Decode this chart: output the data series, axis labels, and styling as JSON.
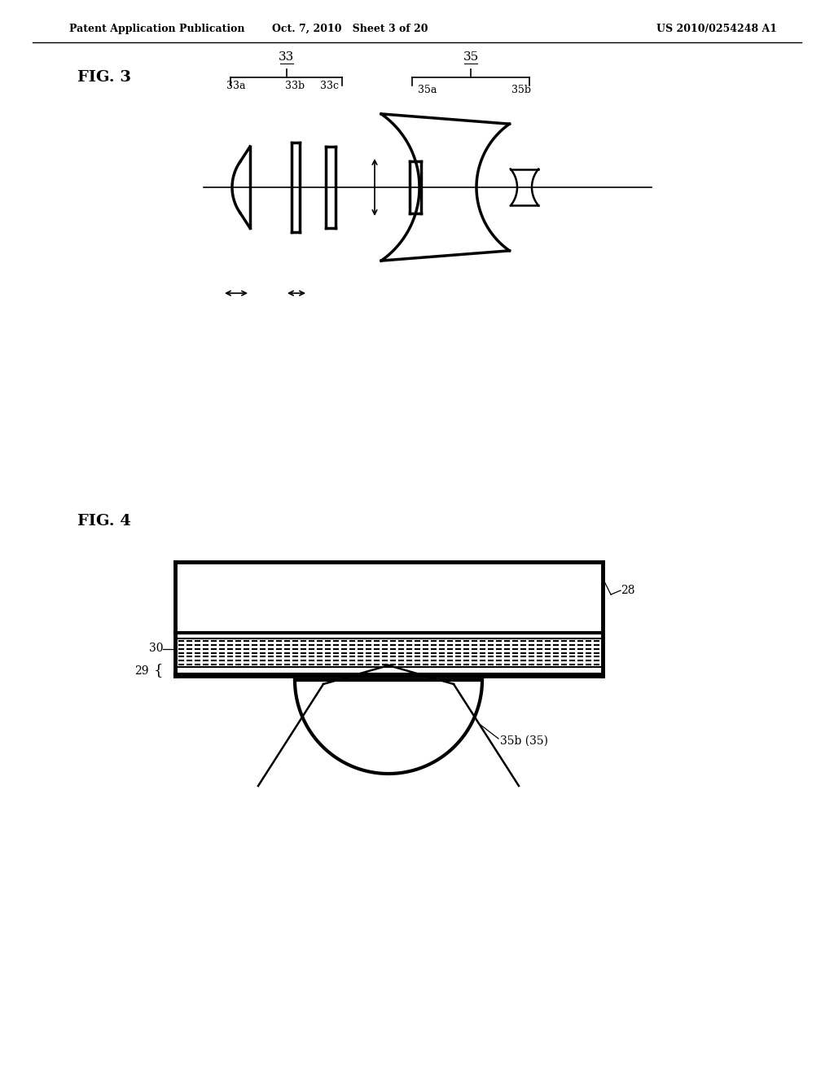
{
  "header_left": "Patent Application Publication",
  "header_mid": "Oct. 7, 2010   Sheet 3 of 20",
  "header_right": "US 2010/0254248 A1",
  "fig3_label": "FIG. 3",
  "fig4_label": "FIG. 4",
  "background_color": "#ffffff",
  "line_color": "#000000",
  "lw_thick": 2.5,
  "lw_medium": 1.8,
  "lw_thin": 1.2
}
